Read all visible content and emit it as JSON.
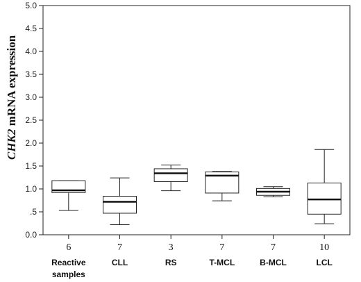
{
  "chart_data": {
    "type": "box",
    "title": "",
    "ylabel_italic": "CHK2",
    "ylabel_rest": " mRNA expression",
    "ylim": [
      0,
      5
    ],
    "yticks": [
      "0.0",
      ".5",
      "1.0",
      "1.5",
      "2.0",
      "2.5",
      "3.0",
      "3.5",
      "4.0",
      "4.5",
      "5.0"
    ],
    "ytick_values": [
      0,
      0.5,
      1,
      1.5,
      2,
      2.5,
      3,
      3.5,
      4,
      4.5,
      5
    ],
    "grid": false,
    "categories": [
      {
        "n": "6",
        "label": [
          "Reactive",
          "samples"
        ],
        "min": 0.53,
        "q1": 0.92,
        "median": 0.97,
        "q3": 1.18,
        "max": 1.18
      },
      {
        "n": "7",
        "label": [
          "CLL"
        ],
        "min": 0.22,
        "q1": 0.47,
        "median": 0.72,
        "q3": 0.84,
        "max": 1.24
      },
      {
        "n": "3",
        "label": [
          "RS"
        ],
        "min": 0.96,
        "q1": 1.16,
        "median": 1.34,
        "q3": 1.44,
        "max": 1.52
      },
      {
        "n": "7",
        "label": [
          "T-MCL"
        ],
        "min": 0.74,
        "q1": 0.91,
        "median": 1.29,
        "q3": 1.37,
        "max": 1.38
      },
      {
        "n": "7",
        "label": [
          "B-MCL"
        ],
        "min": 0.83,
        "q1": 0.86,
        "median": 0.94,
        "q3": 1.01,
        "max": 1.05
      },
      {
        "n": "10",
        "label": [
          "LCL"
        ],
        "min": 0.24,
        "q1": 0.45,
        "median": 0.77,
        "q3": 1.13,
        "max": 1.86
      }
    ]
  }
}
